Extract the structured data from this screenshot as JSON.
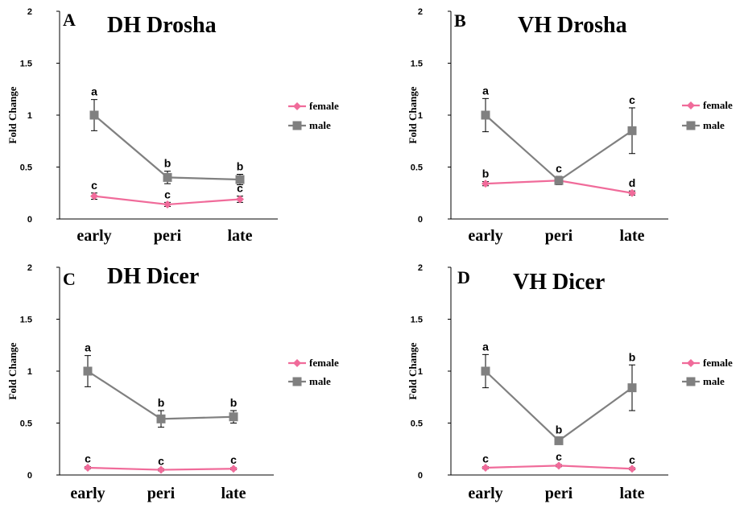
{
  "chart_data": [
    {
      "type": "line",
      "panel_letter": "A",
      "title": "DH Drosha",
      "ylabel": "Fold Change",
      "categories": [
        "early",
        "peri",
        "late"
      ],
      "ylim": [
        0,
        2
      ],
      "yticks": [
        0,
        0.5,
        1,
        1.5,
        2
      ],
      "ytick_labels": [
        "0",
        "0.5",
        "1",
        "1.5",
        "2"
      ],
      "legend_position": "right",
      "series": [
        {
          "name": "female",
          "color": "#f06b9a",
          "marker": "diamond",
          "values": [
            0.22,
            0.14,
            0.19
          ],
          "errors": [
            0.03,
            0.02,
            0.03
          ],
          "sig": [
            "c",
            "c",
            "c"
          ]
        },
        {
          "name": "male",
          "color": "#808080",
          "marker": "square",
          "values": [
            1.0,
            0.4,
            0.38
          ],
          "errors": [
            0.15,
            0.06,
            0.05
          ],
          "sig": [
            "a",
            "b",
            "b"
          ]
        }
      ]
    },
    {
      "type": "line",
      "panel_letter": "B",
      "title": "VH Drosha",
      "ylabel": "Fold Change",
      "categories": [
        "early",
        "peri",
        "late"
      ],
      "ylim": [
        0,
        2
      ],
      "yticks": [
        0,
        0.5,
        1,
        1.5,
        2
      ],
      "ytick_labels": [
        "0",
        "0.5",
        "1",
        "1.5",
        "2"
      ],
      "legend_position": "right",
      "series": [
        {
          "name": "female",
          "color": "#f06b9a",
          "marker": "diamond",
          "values": [
            0.34,
            0.37,
            0.25
          ],
          "errors": [
            0.02,
            0.02,
            0.02
          ],
          "sig": [
            "b",
            "",
            "d"
          ]
        },
        {
          "name": "male",
          "color": "#808080",
          "marker": "square",
          "values": [
            1.0,
            0.37,
            0.85
          ],
          "errors": [
            0.16,
            0.04,
            0.22
          ],
          "sig": [
            "a",
            "c",
            "c"
          ]
        }
      ]
    },
    {
      "type": "line",
      "panel_letter": "C",
      "title": "DH Dicer",
      "ylabel": "Fold Change",
      "categories": [
        "early",
        "peri",
        "late"
      ],
      "ylim": [
        0,
        2
      ],
      "yticks": [
        0,
        0.5,
        1,
        1.5,
        2
      ],
      "ytick_labels": [
        "0",
        "0.5",
        "1",
        "1.5",
        "2"
      ],
      "legend_position": "right",
      "series": [
        {
          "name": "female",
          "color": "#f06b9a",
          "marker": "diamond",
          "values": [
            0.07,
            0.05,
            0.06
          ],
          "errors": [
            0.01,
            0.01,
            0.01
          ],
          "sig": [
            "c",
            "c",
            "c"
          ]
        },
        {
          "name": "male",
          "color": "#808080",
          "marker": "square",
          "values": [
            1.0,
            0.54,
            0.56
          ],
          "errors": [
            0.15,
            0.08,
            0.06
          ],
          "sig": [
            "a",
            "b",
            "b"
          ]
        }
      ]
    },
    {
      "type": "line",
      "panel_letter": "D",
      "title": "VH Dicer",
      "ylabel": "Fold Change",
      "categories": [
        "early",
        "peri",
        "late"
      ],
      "ylim": [
        0,
        2
      ],
      "yticks": [
        0,
        0.5,
        1,
        1.5,
        2
      ],
      "ytick_labels": [
        "0",
        "0.5",
        "1",
        "1.5",
        "2"
      ],
      "legend_position": "right",
      "series": [
        {
          "name": "female",
          "color": "#f06b9a",
          "marker": "diamond",
          "values": [
            0.07,
            0.09,
            0.06
          ],
          "errors": [
            0.01,
            0.01,
            0.01
          ],
          "sig": [
            "c",
            "c",
            "c"
          ]
        },
        {
          "name": "male",
          "color": "#808080",
          "marker": "square",
          "values": [
            1.0,
            0.33,
            0.84
          ],
          "errors": [
            0.16,
            0.03,
            0.22
          ],
          "sig": [
            "a",
            "b",
            "b"
          ]
        }
      ]
    }
  ]
}
